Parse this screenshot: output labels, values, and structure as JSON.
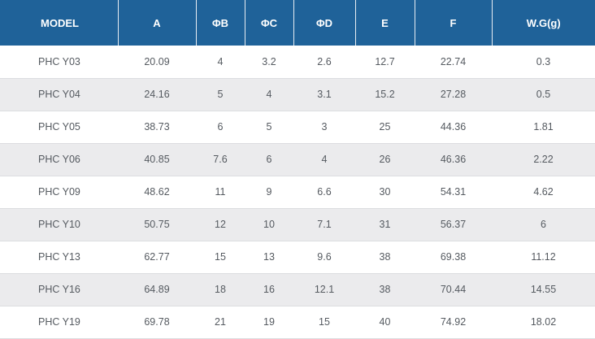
{
  "table": {
    "headers": [
      "MODEL",
      "A",
      "ΦB",
      "ΦC",
      "ΦD",
      "E",
      "F",
      "W.G(g)"
    ],
    "rows": [
      [
        "PHC Y03",
        "20.09",
        "4",
        "3.2",
        "2.6",
        "12.7",
        "22.74",
        "0.3"
      ],
      [
        "PHC Y04",
        "24.16",
        "5",
        "4",
        "3.1",
        "15.2",
        "27.28",
        "0.5"
      ],
      [
        "PHC Y05",
        "38.73",
        "6",
        "5",
        "3",
        "25",
        "44.36",
        "1.81"
      ],
      [
        "PHC Y06",
        "40.85",
        "7.6",
        "6",
        "4",
        "26",
        "46.36",
        "2.22"
      ],
      [
        "PHC Y09",
        "48.62",
        "11",
        "9",
        "6.6",
        "30",
        "54.31",
        "4.62"
      ],
      [
        "PHC Y10",
        "50.75",
        "12",
        "10",
        "7.1",
        "31",
        "56.37",
        "6"
      ],
      [
        "PHC Y13",
        "62.77",
        "15",
        "13",
        "9.6",
        "38",
        "69.38",
        "11.12"
      ],
      [
        "PHC Y16",
        "64.89",
        "18",
        "16",
        "12.1",
        "38",
        "70.44",
        "14.55"
      ],
      [
        "PHC Y19",
        "69.78",
        "21",
        "19",
        "15",
        "40",
        "74.92",
        "18.02"
      ]
    ]
  },
  "colors": {
    "header_bg": "#1f6299",
    "header_text": "#ffffff",
    "row_alt_bg": "#ebebed",
    "cell_text": "#555a60"
  }
}
